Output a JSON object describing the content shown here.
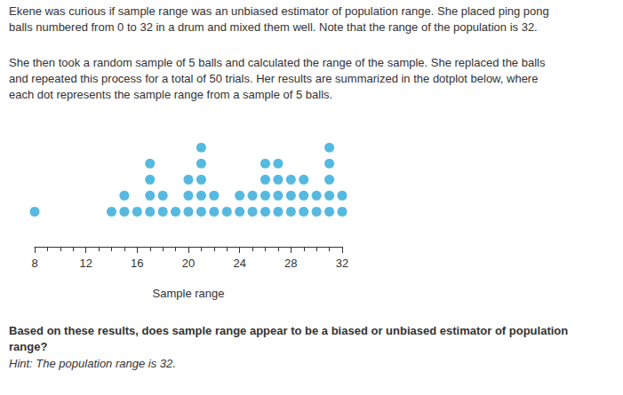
{
  "paragraphs": [
    [
      "Ekene was curious if sample range was an unbiased estimator of population range. She placed ping pong",
      "balls numbered from 0 to 32 in a drum and mixed them well. Note that the range of the population is 32."
    ],
    [
      "She then took a random sample of 5 balls and calculated the range of the sample. She replaced the balls",
      "and repeated this process for a total of 50 trials. Her results are summarized in the dotplot below, where",
      "each dot represents the sample range from a sample of 5 balls."
    ]
  ],
  "chart_data": {
    "type": "dotplot",
    "x_label": "Sample range",
    "values": [
      8,
      14,
      15,
      15,
      16,
      17,
      17,
      17,
      17,
      18,
      18,
      19,
      20,
      20,
      20,
      21,
      21,
      21,
      21,
      21,
      22,
      22,
      23,
      24,
      24,
      25,
      25,
      26,
      26,
      26,
      26,
      27,
      27,
      27,
      27,
      28,
      28,
      28,
      29,
      29,
      29,
      30,
      30,
      31,
      31,
      31,
      31,
      31,
      32,
      32
    ],
    "xlim": [
      8,
      32
    ],
    "xticks": [
      8,
      12,
      16,
      20,
      24,
      28,
      32
    ],
    "color": "#2aa8d8",
    "grid": false
  },
  "question": {
    "lines": [
      "Based on these results, does sample range appear to be a biased or unbiased estimator of population",
      "range?"
    ],
    "hint": "Hint: The population range is 32."
  }
}
